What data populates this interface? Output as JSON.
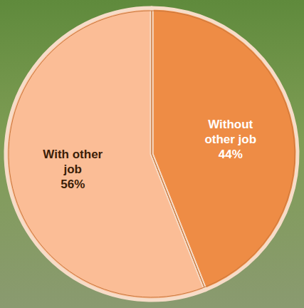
{
  "chart_data": {
    "type": "pie",
    "categories": [
      "Without other job",
      "With other job"
    ],
    "values": [
      44,
      56
    ],
    "value_labels": [
      "44%",
      "56%"
    ],
    "colors": [
      "#ee8c45",
      "#fbbd96"
    ],
    "data_labels": true
  }
}
